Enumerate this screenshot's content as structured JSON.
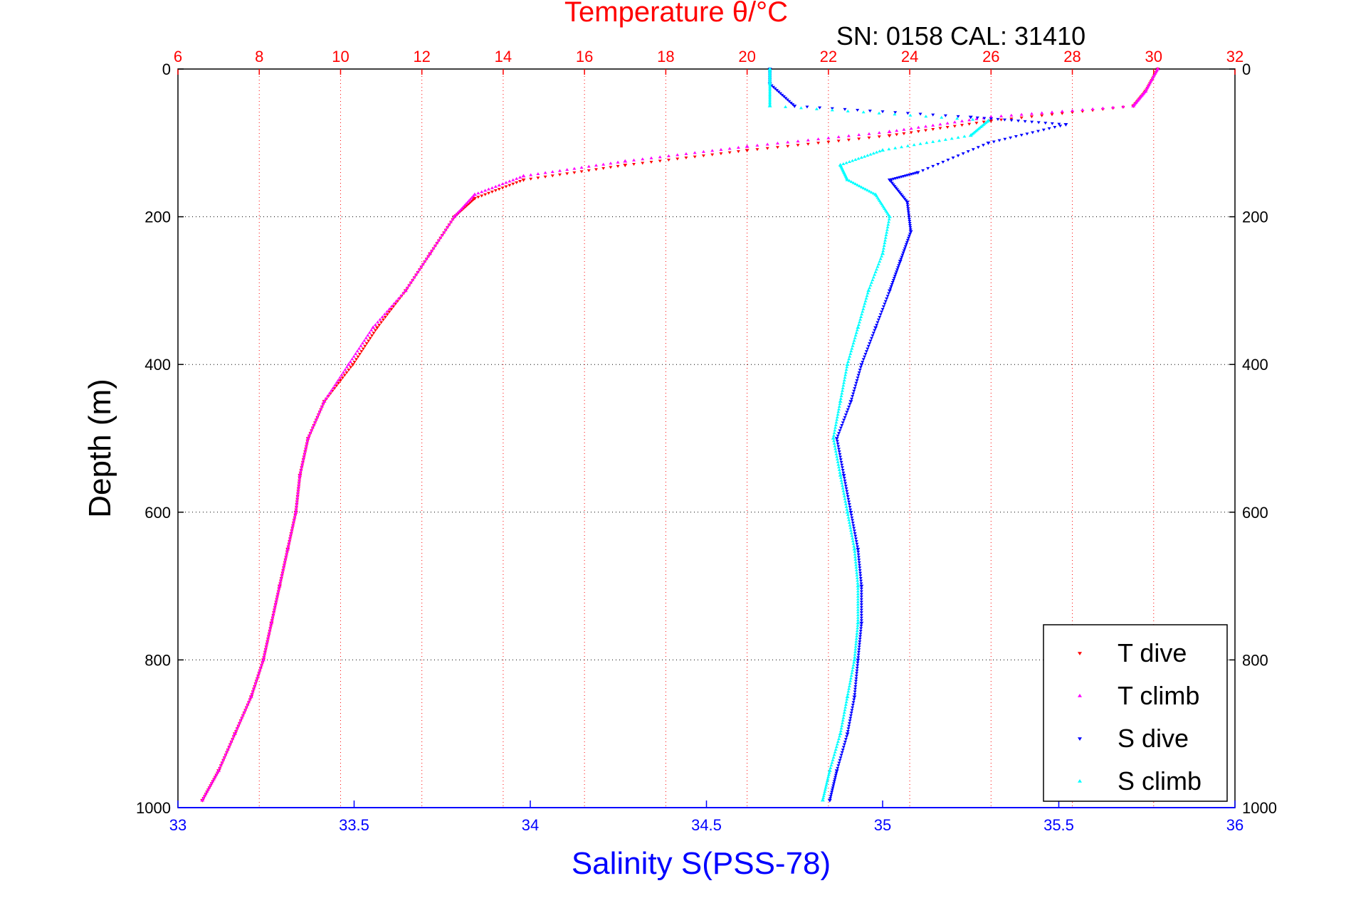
{
  "chart_data": {
    "type": "scatter",
    "title": "Temperature θ/°C",
    "subtitle": "SN: 0158  CAL: 31410",
    "xlabel": "Salinity S(PSS-78)",
    "ylabel": "Depth (m)",
    "ylim": [
      0,
      1000
    ],
    "y_reversed": true,
    "y_ticks": [
      0,
      200,
      400,
      600,
      800,
      1000
    ],
    "x_salinity": {
      "lim": [
        33,
        36
      ],
      "ticks": [
        "33",
        "33.5",
        "34",
        "34.5",
        "35",
        "35.5",
        "36"
      ],
      "position": "bottom"
    },
    "x_temperature": {
      "lim": [
        6,
        32
      ],
      "ticks": [
        "6",
        "8",
        "10",
        "12",
        "14",
        "16",
        "18",
        "20",
        "22",
        "24",
        "26",
        "28",
        "30",
        "32"
      ],
      "position": "top"
    },
    "grid": "vertical dotted at temperature ticks, horizontal dotted at depth ticks",
    "legend_placement": "bottom-right",
    "series": [
      {
        "name": "T dive",
        "axis": "temperature",
        "color": "#ff0000",
        "marker": "triangle-down",
        "points": [
          [
            30.1,
            0
          ],
          [
            29.8,
            30
          ],
          [
            29.5,
            50
          ],
          [
            26,
            70
          ],
          [
            23.5,
            90
          ],
          [
            20,
            110
          ],
          [
            17,
            130
          ],
          [
            14.5,
            150
          ],
          [
            13.3,
            175
          ],
          [
            12.8,
            200
          ],
          [
            12.2,
            250
          ],
          [
            11.6,
            300
          ],
          [
            10.9,
            350
          ],
          [
            10.3,
            400
          ],
          [
            9.6,
            450
          ],
          [
            9.2,
            500
          ],
          [
            9,
            550
          ],
          [
            8.9,
            600
          ],
          [
            8.7,
            650
          ],
          [
            8.5,
            700
          ],
          [
            8.3,
            750
          ],
          [
            8.1,
            800
          ],
          [
            7.8,
            850
          ],
          [
            7.4,
            900
          ],
          [
            7,
            950
          ],
          [
            6.6,
            990
          ]
        ]
      },
      {
        "name": "T climb",
        "axis": "temperature",
        "color": "#ff00ff",
        "marker": "triangle-up",
        "points": [
          [
            30.1,
            0
          ],
          [
            29.8,
            30
          ],
          [
            29.5,
            50
          ],
          [
            26,
            65
          ],
          [
            23.5,
            85
          ],
          [
            20,
            105
          ],
          [
            17,
            125
          ],
          [
            14.5,
            145
          ],
          [
            13.3,
            170
          ],
          [
            12.8,
            200
          ],
          [
            12.2,
            250
          ],
          [
            11.6,
            300
          ],
          [
            10.8,
            350
          ],
          [
            10.2,
            400
          ],
          [
            9.6,
            450
          ],
          [
            9.2,
            500
          ],
          [
            9,
            550
          ],
          [
            8.9,
            600
          ],
          [
            8.7,
            650
          ],
          [
            8.5,
            700
          ],
          [
            8.3,
            750
          ],
          [
            8.1,
            800
          ],
          [
            7.8,
            850
          ],
          [
            7.4,
            900
          ],
          [
            7,
            950
          ],
          [
            6.6,
            990
          ]
        ]
      },
      {
        "name": "S dive",
        "axis": "salinity",
        "color": "#0000ff",
        "marker": "triangle-down",
        "points": [
          [
            34.68,
            0
          ],
          [
            34.68,
            20
          ],
          [
            34.75,
            50
          ],
          [
            35.25,
            65
          ],
          [
            35.52,
            75
          ],
          [
            35.3,
            100
          ],
          [
            35.1,
            140
          ],
          [
            35.02,
            150
          ],
          [
            35.07,
            180
          ],
          [
            35.08,
            220
          ],
          [
            35.05,
            260
          ],
          [
            35.02,
            300
          ],
          [
            34.98,
            350
          ],
          [
            34.94,
            400
          ],
          [
            34.91,
            450
          ],
          [
            34.87,
            500
          ],
          [
            34.89,
            550
          ],
          [
            34.91,
            600
          ],
          [
            34.93,
            650
          ],
          [
            34.94,
            700
          ],
          [
            34.94,
            750
          ],
          [
            34.93,
            800
          ],
          [
            34.92,
            850
          ],
          [
            34.9,
            900
          ],
          [
            34.87,
            950
          ],
          [
            34.85,
            990
          ]
        ]
      },
      {
        "name": "S climb",
        "axis": "salinity",
        "color": "#00ffff",
        "marker": "triangle-up",
        "points": [
          [
            34.68,
            0
          ],
          [
            34.68,
            20
          ],
          [
            34.68,
            50
          ],
          [
            35.3,
            70
          ],
          [
            35.25,
            90
          ],
          [
            35.0,
            110
          ],
          [
            34.88,
            130
          ],
          [
            34.9,
            150
          ],
          [
            34.98,
            170
          ],
          [
            35.02,
            200
          ],
          [
            35.0,
            250
          ],
          [
            34.96,
            300
          ],
          [
            34.93,
            350
          ],
          [
            34.9,
            400
          ],
          [
            34.88,
            450
          ],
          [
            34.86,
            500
          ],
          [
            34.88,
            550
          ],
          [
            34.9,
            600
          ],
          [
            34.92,
            650
          ],
          [
            34.93,
            700
          ],
          [
            34.93,
            750
          ],
          [
            34.92,
            800
          ],
          [
            34.9,
            850
          ],
          [
            34.88,
            900
          ],
          [
            34.85,
            950
          ],
          [
            34.83,
            990
          ]
        ]
      }
    ]
  }
}
